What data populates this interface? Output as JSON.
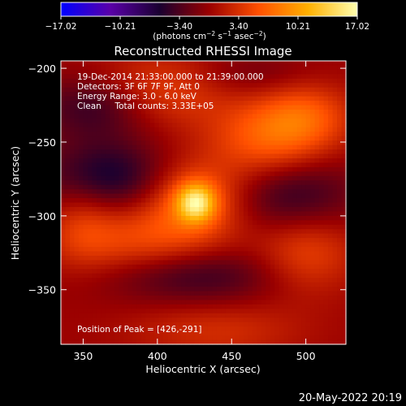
{
  "chart_data": {
    "type": "heatmap",
    "title": "Reconstructed RHESSI Image",
    "xlabel": "Heliocentric X (arcsec)",
    "ylabel": "Heliocentric Y (arcsec)",
    "xlim": [
      335,
      527
    ],
    "ylim": [
      -387,
      -195
    ],
    "x_ticks": [
      350,
      400,
      450,
      500
    ],
    "y_ticks": [
      -200,
      -250,
      -300,
      -350
    ],
    "x_tick_labels": [
      "350",
      "400",
      "450",
      "500"
    ],
    "y_tick_labels": [
      "−200",
      "−250",
      "−300",
      "−350"
    ],
    "colorbar": {
      "min": -17.02,
      "max": 17.02,
      "tick_values": [
        -17.02,
        -10.21,
        -3.4,
        3.4,
        10.21,
        17.02
      ],
      "tick_labels": [
        "−17.02",
        "−10.21",
        "−3.40",
        "3.40",
        "10.21",
        "17.02"
      ],
      "units_prefix": "(photons cm",
      "units_sup1": "−2",
      "units_mid1": " s",
      "units_sup2": "−1",
      "units_mid2": " asec",
      "units_sup3": "−2",
      "units_suffix": ")",
      "colors": [
        "#0000ff",
        "#5a00a8",
        "#1a0030",
        "#9a0000",
        "#ff5000",
        "#ffb000",
        "#ffffb0"
      ]
    },
    "annotations": [
      "19-Dec-2014 21:33:00.000 to 21:39:00.000",
      "Detectors: 3F 6F 7F 9F, Att 0",
      "Energy Range: 3.0 - 6.0 keV",
      "Clean     Total counts: 3.33E+05"
    ],
    "peak_label": "Position of Peak = [426,-291]",
    "peak": {
      "x": 426,
      "y": -291,
      "value": 17.02
    },
    "sources": [
      {
        "x": 426,
        "y": -291,
        "amplitude": 17.0,
        "sigma_x": 9,
        "sigma_y": 9
      },
      {
        "x": 425,
        "y": -288,
        "amplitude": 10.0,
        "sigma_x": 24,
        "sigma_y": 18
      },
      {
        "x": 390,
        "y": -318,
        "amplitude": 9.0,
        "sigma_x": 40,
        "sigma_y": 20
      },
      {
        "x": 475,
        "y": -250,
        "amplitude": 10.5,
        "sigma_x": 28,
        "sigma_y": 20
      },
      {
        "x": 500,
        "y": -232,
        "amplitude": 8.0,
        "sigma_x": 22,
        "sigma_y": 16
      },
      {
        "x": 400,
        "y": -215,
        "amplitude": 8.0,
        "sigma_x": 36,
        "sigma_y": 18
      },
      {
        "x": 500,
        "y": -325,
        "amplitude": 8.0,
        "sigma_x": 24,
        "sigma_y": 20
      },
      {
        "x": 350,
        "y": -300,
        "amplitude": 5.0,
        "sigma_x": 16,
        "sigma_y": 22
      },
      {
        "x": 440,
        "y": -378,
        "amplitude": 5.0,
        "sigma_x": 40,
        "sigma_y": 14
      },
      {
        "x": 365,
        "y": -275,
        "amplitude": -11.0,
        "sigma_x": 30,
        "sigma_y": 18
      },
      {
        "x": 360,
        "y": -225,
        "amplitude": -9.0,
        "sigma_x": 28,
        "sigma_y": 16
      },
      {
        "x": 420,
        "y": -340,
        "amplitude": -9.0,
        "sigma_x": 45,
        "sigma_y": 14
      },
      {
        "x": 490,
        "y": -285,
        "amplitude": -9.0,
        "sigma_x": 30,
        "sigma_y": 20
      },
      {
        "x": 460,
        "y": -205,
        "amplitude": -4.0,
        "sigma_x": 30,
        "sigma_y": 12
      }
    ],
    "grid": false
  },
  "footer": {
    "timestamp": "20-May-2022 20:19"
  }
}
